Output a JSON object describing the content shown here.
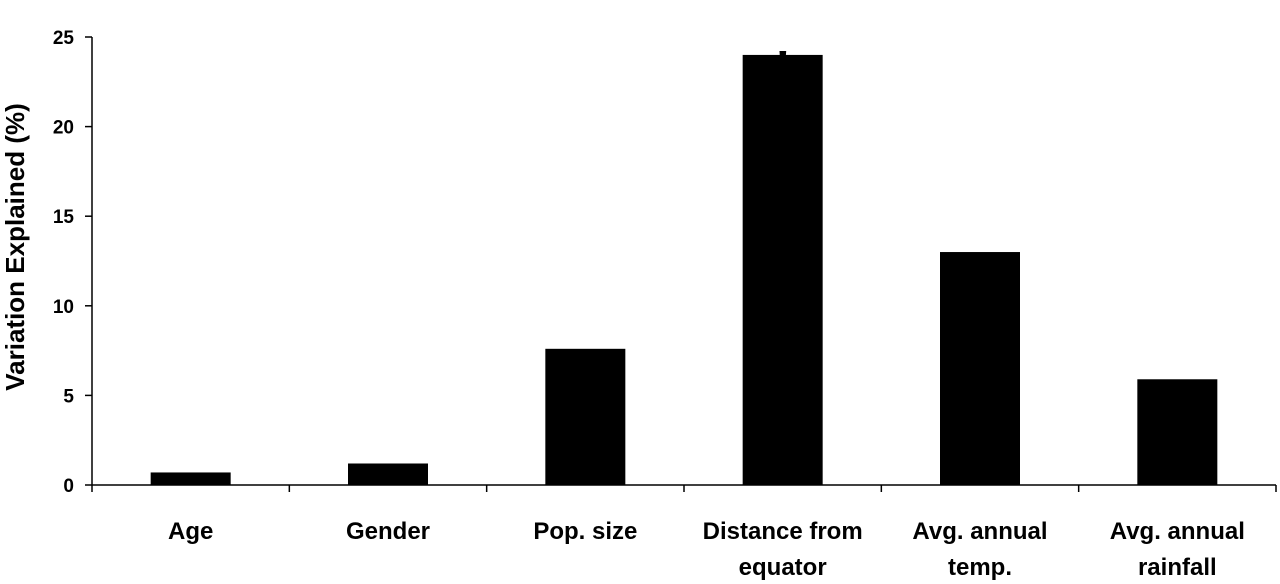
{
  "chart_data": {
    "type": "bar",
    "title": "",
    "xlabel": "",
    "ylabel": "Variation Explained (%)",
    "ylim": [
      0,
      25
    ],
    "yticks": [
      0,
      5,
      10,
      15,
      20,
      25
    ],
    "grid": false,
    "legend": "none",
    "bar_color": "#000000",
    "categories": [
      [
        "Age"
      ],
      [
        "Gender"
      ],
      [
        "Pop. size"
      ],
      [
        "Distance from",
        "equator"
      ],
      [
        "Avg. annual",
        "temp."
      ],
      [
        "Avg. annual",
        "rainfall"
      ]
    ],
    "values": [
      0.7,
      1.2,
      7.6,
      24.0,
      13.0,
      5.9
    ],
    "annotations": [
      {
        "category_index": 3,
        "text": "*"
      }
    ]
  }
}
